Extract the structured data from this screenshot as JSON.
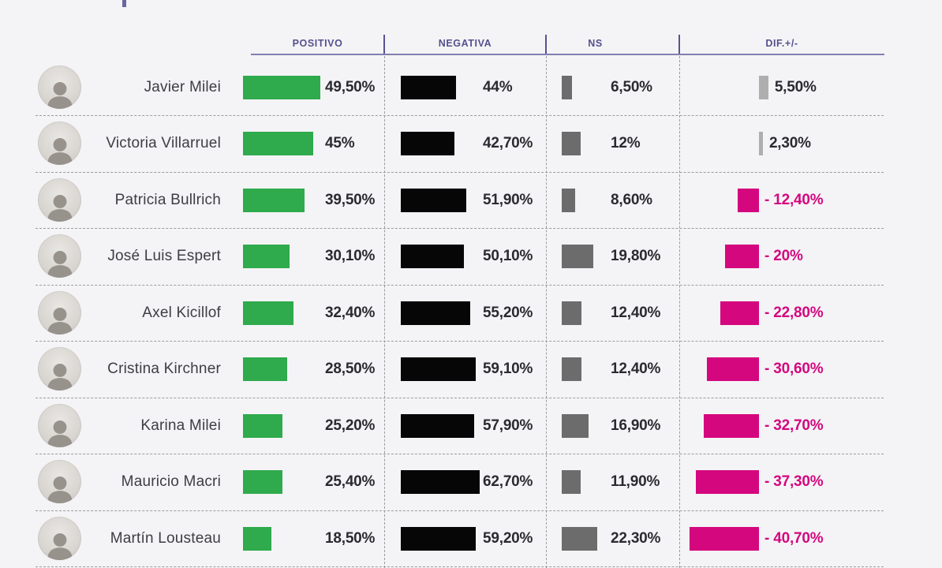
{
  "table": {
    "headers": {
      "positivo": "POSITIVO",
      "negativa": "NEGATIVA",
      "ns": "NS",
      "dif": "DIF.+/-"
    },
    "rows": [
      {
        "name": "Javier Milei",
        "positivo": {
          "value": 49.5,
          "label": "49,50%"
        },
        "negativa": {
          "value": 44,
          "label": "44%"
        },
        "ns": {
          "value": 6.5,
          "label": "6,50%"
        },
        "dif": {
          "value": 5.5,
          "label": "5,50%"
        }
      },
      {
        "name": "Victoria Villarruel",
        "positivo": {
          "value": 45,
          "label": "45%"
        },
        "negativa": {
          "value": 42.7,
          "label": "42,70%"
        },
        "ns": {
          "value": 12,
          "label": "12%"
        },
        "dif": {
          "value": 2.3,
          "label": "2,30%"
        }
      },
      {
        "name": "Patricia Bullrich",
        "positivo": {
          "value": 39.5,
          "label": "39,50%"
        },
        "negativa": {
          "value": 51.9,
          "label": "51,90%"
        },
        "ns": {
          "value": 8.6,
          "label": "8,60%"
        },
        "dif": {
          "value": -12.4,
          "label": "- 12,40%"
        }
      },
      {
        "name": "José Luis Espert",
        "positivo": {
          "value": 30.1,
          "label": "30,10%"
        },
        "negativa": {
          "value": 50.1,
          "label": "50,10%"
        },
        "ns": {
          "value": 19.8,
          "label": "19,80%"
        },
        "dif": {
          "value": -20,
          "label": "- 20%"
        }
      },
      {
        "name": "Axel Kicillof",
        "positivo": {
          "value": 32.4,
          "label": "32,40%"
        },
        "negativa": {
          "value": 55.2,
          "label": "55,20%"
        },
        "ns": {
          "value": 12.4,
          "label": "12,40%"
        },
        "dif": {
          "value": -22.8,
          "label": "- 22,80%"
        }
      },
      {
        "name": "Cristina Kirchner",
        "positivo": {
          "value": 28.5,
          "label": "28,50%"
        },
        "negativa": {
          "value": 59.1,
          "label": "59,10%"
        },
        "ns": {
          "value": 12.4,
          "label": "12,40%"
        },
        "dif": {
          "value": -30.6,
          "label": "- 30,60%"
        }
      },
      {
        "name": "Karina Milei",
        "positivo": {
          "value": 25.2,
          "label": "25,20%"
        },
        "negativa": {
          "value": 57.9,
          "label": "57,90%"
        },
        "ns": {
          "value": 16.9,
          "label": "16,90%"
        },
        "dif": {
          "value": -32.7,
          "label": "- 32,70%"
        }
      },
      {
        "name": "Mauricio Macri",
        "positivo": {
          "value": 25.4,
          "label": "25,40%"
        },
        "negativa": {
          "value": 62.7,
          "label": "62,70%"
        },
        "ns": {
          "value": 11.9,
          "label": "11,90%"
        },
        "dif": {
          "value": -37.3,
          "label": "- 37,30%"
        }
      },
      {
        "name": "Martín Lousteau",
        "positivo": {
          "value": 18.5,
          "label": "18,50%"
        },
        "negativa": {
          "value": 59.2,
          "label": "59,20%"
        },
        "ns": {
          "value": 22.3,
          "label": "22,30%"
        },
        "dif": {
          "value": -40.7,
          "label": "- 40,70%"
        }
      }
    ]
  },
  "colors": {
    "positivo_bar": "#2faa4c",
    "negativa_bar": "#060606",
    "ns_bar": "#6c6c6c",
    "dif_positive_bar": "#aeaeae",
    "dif_negative_bar": "#d4077e",
    "header_text": "#54508e"
  },
  "chart_data": {
    "type": "bar",
    "title": "",
    "categories": [
      "Javier Milei",
      "Victoria Villarruel",
      "Patricia Bullrich",
      "José Luis Espert",
      "Axel Kicillof",
      "Cristina Kirchner",
      "Karina Milei",
      "Mauricio Macri",
      "Martín Lousteau"
    ],
    "series": [
      {
        "name": "POSITIVO",
        "values": [
          49.5,
          45,
          39.5,
          30.1,
          32.4,
          28.5,
          25.2,
          25.4,
          18.5
        ]
      },
      {
        "name": "NEGATIVA",
        "values": [
          44,
          42.7,
          51.9,
          50.1,
          55.2,
          59.1,
          57.9,
          62.7,
          59.2
        ]
      },
      {
        "name": "NS",
        "values": [
          6.5,
          12,
          8.6,
          19.8,
          12.4,
          12.4,
          16.9,
          11.9,
          22.3
        ]
      },
      {
        "name": "DIF.+/-",
        "values": [
          5.5,
          2.3,
          -12.4,
          -20,
          -22.8,
          -30.6,
          -32.7,
          -37.3,
          -40.7
        ]
      }
    ],
    "xlabel": "",
    "ylabel": "",
    "legend_position": "top",
    "grid": "dashed row/column separators",
    "orientation": "horizontal bars per table cell"
  }
}
